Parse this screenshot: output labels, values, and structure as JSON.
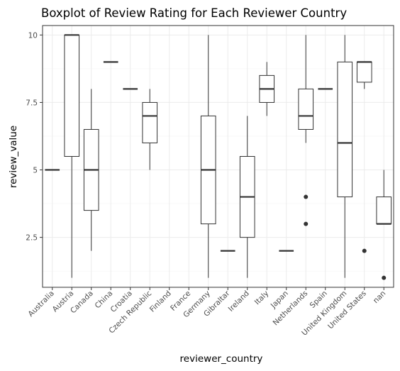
{
  "chart_data": {
    "type": "boxplot",
    "title": "Boxplot of Review Rating for Each Reviewer Country",
    "xlabel": "reviewer_country",
    "ylabel": "review_value",
    "ylim": [
      0.65,
      10.35
    ],
    "yticks": [
      2.5,
      5,
      7.5,
      10
    ],
    "ytick_labels": [
      "2.5",
      "5",
      "7.5",
      "10"
    ],
    "grid": true,
    "categories": [
      "Australia",
      "Austria",
      "Canada",
      "China",
      "Croatia",
      "Czech Republic",
      "Finland",
      "France",
      "Germany",
      "Gibraltar",
      "Ireland",
      "Italy",
      "Japan",
      "Netherlands",
      "Spain",
      "United Kingdom",
      "United States",
      "nan"
    ],
    "boxes": [
      {
        "category": "Australia",
        "min": 5,
        "q1": 5,
        "median": 5,
        "q3": 5,
        "max": 5,
        "outliers": []
      },
      {
        "category": "Austria",
        "min": 1,
        "q1": 5.5,
        "median": 10,
        "q3": 10,
        "max": 10,
        "outliers": []
      },
      {
        "category": "Canada",
        "min": 2,
        "q1": 3.5,
        "median": 5,
        "q3": 6.5,
        "max": 8,
        "outliers": []
      },
      {
        "category": "China",
        "min": 9,
        "q1": 9,
        "median": 9,
        "q3": 9,
        "max": 9,
        "outliers": []
      },
      {
        "category": "Croatia",
        "min": 8,
        "q1": 8,
        "median": 8,
        "q3": 8,
        "max": 8,
        "outliers": []
      },
      {
        "category": "Czech Republic",
        "min": 5,
        "q1": 6,
        "median": 7,
        "q3": 7.5,
        "max": 8,
        "outliers": []
      },
      {
        "category": "Finland",
        "empty": true
      },
      {
        "category": "France",
        "empty": true
      },
      {
        "category": "Germany",
        "min": 1,
        "q1": 3,
        "median": 5,
        "q3": 7,
        "max": 10,
        "outliers": []
      },
      {
        "category": "Gibraltar",
        "min": 2,
        "q1": 2,
        "median": 2,
        "q3": 2,
        "max": 2,
        "outliers": []
      },
      {
        "category": "Ireland",
        "min": 1,
        "q1": 2.5,
        "median": 4,
        "q3": 5.5,
        "max": 7,
        "outliers": []
      },
      {
        "category": "Italy",
        "min": 7,
        "q1": 7.5,
        "median": 8,
        "q3": 8.5,
        "max": 9,
        "outliers": []
      },
      {
        "category": "Japan",
        "min": 2,
        "q1": 2,
        "median": 2,
        "q3": 2,
        "max": 2,
        "outliers": []
      },
      {
        "category": "Netherlands",
        "min": 6,
        "q1": 6.5,
        "median": 7,
        "q3": 8,
        "max": 10,
        "outliers": [
          4,
          3
        ]
      },
      {
        "category": "Spain",
        "min": 8,
        "q1": 8,
        "median": 8,
        "q3": 8,
        "max": 8,
        "outliers": []
      },
      {
        "category": "United Kingdom",
        "min": 1,
        "q1": 4,
        "median": 6,
        "q3": 9,
        "max": 10,
        "outliers": []
      },
      {
        "category": "United States",
        "min": 8,
        "q1": 8.25,
        "median": 9,
        "q3": 9,
        "max": 9,
        "outliers": [
          2
        ]
      },
      {
        "category": "nan",
        "min": 3,
        "q1": 3,
        "median": 3,
        "q3": 4,
        "max": 5,
        "outliers": [
          1
        ]
      }
    ]
  }
}
